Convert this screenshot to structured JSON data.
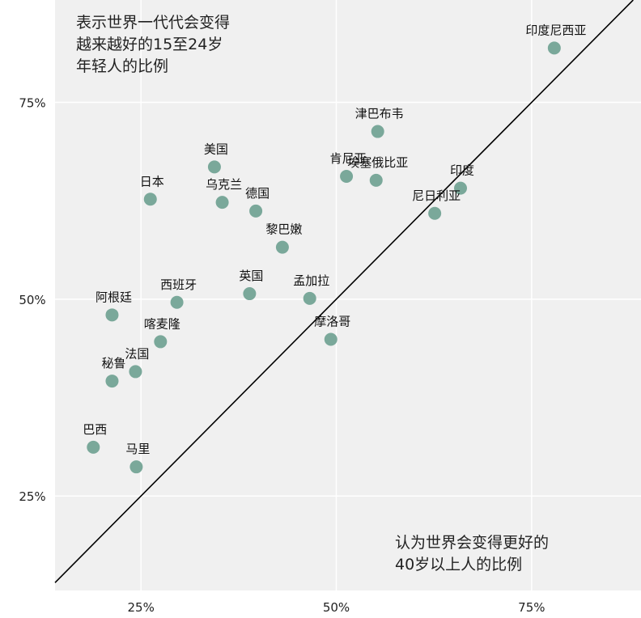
{
  "colors": {
    "plot_background": "#f0f0f0",
    "grid": "#ffffff",
    "point": "#7aa89a",
    "diagonal": "#000000",
    "text": "#222222"
  },
  "chart_data": {
    "type": "scatter",
    "title": "",
    "xlabel": "认为世界会变得更好的40岁以上人的比例",
    "ylabel": "表示世界一代代会变得越来越好的15至24岁年轻人的比例",
    "x_annotation_lines": [
      "认为世界会变得更好的",
      "40岁以上人的比例"
    ],
    "y_annotation_lines": [
      "表示世界一代代会变得",
      "越来越好的15至24岁",
      "年轻人的比例"
    ],
    "xlim": [
      14,
      89
    ],
    "ylim": [
      13,
      88
    ],
    "x_ticks": [
      25,
      50,
      75
    ],
    "x_tick_labels": [
      "25%",
      "50%",
      "75%"
    ],
    "y_ticks": [
      25,
      50,
      75
    ],
    "y_tick_labels": [
      "25%",
      "50%",
      "75%"
    ],
    "grid": true,
    "reference_line": "y = x",
    "points": [
      {
        "label": "印度尼西亚",
        "x": 77.9,
        "y": 81.9
      },
      {
        "label": "津巴布韦",
        "x": 55.3,
        "y": 71.3
      },
      {
        "label": "肯尼亚",
        "x": 51.3,
        "y": 65.6
      },
      {
        "label": "埃塞俄比亚",
        "x": 55.1,
        "y": 65.1
      },
      {
        "label": "印度",
        "x": 65.9,
        "y": 64.1
      },
      {
        "label": "尼日利亚",
        "x": 62.6,
        "y": 60.9
      },
      {
        "label": "美国",
        "x": 34.4,
        "y": 66.8
      },
      {
        "label": "日本",
        "x": 26.2,
        "y": 62.7
      },
      {
        "label": "乌克兰",
        "x": 35.4,
        "y": 62.3
      },
      {
        "label": "德国",
        "x": 39.7,
        "y": 61.2
      },
      {
        "label": "黎巴嫩",
        "x": 43.1,
        "y": 56.6
      },
      {
        "label": "西班牙",
        "x": 29.6,
        "y": 49.6
      },
      {
        "label": "英国",
        "x": 38.9,
        "y": 50.7
      },
      {
        "label": "孟加拉",
        "x": 46.6,
        "y": 50.1
      },
      {
        "label": "阿根廷",
        "x": 21.3,
        "y": 48.0
      },
      {
        "label": "喀麦隆",
        "x": 27.5,
        "y": 44.6
      },
      {
        "label": "摩洛哥",
        "x": 49.3,
        "y": 44.9
      },
      {
        "label": "法国",
        "x": 24.3,
        "y": 40.8
      },
      {
        "label": "秘鲁",
        "x": 21.3,
        "y": 39.6
      },
      {
        "label": "巴西",
        "x": 18.9,
        "y": 31.2
      },
      {
        "label": "马里",
        "x": 24.4,
        "y": 28.7
      }
    ]
  }
}
